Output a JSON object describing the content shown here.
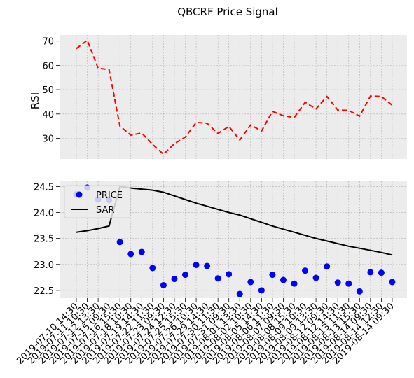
{
  "chart_data": [
    {
      "type": "line",
      "title": "QBCRF Price Signal",
      "ylabel": "RSI",
      "xlabel": "",
      "ylim": [
        21.5,
        72.5
      ],
      "yticks": [
        30,
        40,
        50,
        60,
        70
      ],
      "grid": true,
      "series": [
        {
          "values": [
            66.9,
            70.3,
            58.8,
            58.2,
            35.0,
            31.3,
            32.2,
            27.5,
            23.4,
            27.8,
            30.5,
            36.5,
            36.2,
            32.0,
            34.9,
            29.3,
            35.5,
            33.0,
            41.1,
            39.3,
            38.6,
            44.8,
            42.1,
            47.2,
            41.6,
            41.5,
            39.1,
            47.4,
            47.2,
            43.6
          ],
          "color": "#ff0000",
          "dash": "dashed"
        }
      ]
    },
    {
      "type": "scatter",
      "ylim": [
        22.35,
        24.6
      ],
      "yticks": [
        "22.5",
        "23.0",
        "23.5",
        "24.0",
        "24.5"
      ],
      "grid": true,
      "legend_position": "top-left",
      "categories": [
        "2019-07-10 14:30",
        "2019-07-11 10:30",
        "2019-07-12 13:30",
        "2019-07-15 09:30",
        "2019-07-16 15:30",
        "2019-07-18 10:30",
        "2019-07-19 14:30",
        "2019-07-22 11:30",
        "2019-07-23 09:30",
        "2019-07-24 12:30",
        "2019-07-25 15:30",
        "2019-07-26 10:30",
        "2019-07-29 14:30",
        "2019-07-30 11:30",
        "2019-07-31 09:30",
        "2019-08-01 13:30",
        "2019-08-02 10:30",
        "2019-08-05 14:30",
        "2019-08-06 11:30",
        "2019-08-07 09:30",
        "2019-08-08 15:30",
        "2019-08-09 10:30",
        "2019-08-09 13:30",
        "2019-08-12 09:30",
        "2019-08-12 14:30",
        "2019-08-13 11:30",
        "2019-08-13 15:30",
        "2019-08-14 09:30",
        "2019-08-14 12:30",
        "2019-08-14 09:30"
      ],
      "series": [
        {
          "name": "PRICE",
          "kind": "scatter",
          "color": "#0000ff",
          "values": [
            24.35,
            24.48,
            24.25,
            24.24,
            23.43,
            23.2,
            23.24,
            22.93,
            22.6,
            22.72,
            22.8,
            22.99,
            22.97,
            22.73,
            22.81,
            22.43,
            22.66,
            22.5,
            22.8,
            22.7,
            22.63,
            22.88,
            22.74,
            22.96,
            22.65,
            22.63,
            22.48,
            22.85,
            22.84,
            22.66
          ]
        },
        {
          "name": "SAR",
          "kind": "line",
          "color": "#000000",
          "values": [
            23.62,
            23.65,
            23.69,
            23.74,
            24.5,
            24.47,
            24.45,
            24.43,
            24.39,
            24.32,
            24.25,
            24.18,
            24.12,
            24.06,
            24.0,
            23.95,
            23.88,
            23.81,
            23.74,
            23.68,
            23.62,
            23.56,
            23.5,
            23.45,
            23.4,
            23.35,
            23.31,
            23.27,
            23.23,
            23.18
          ]
        }
      ]
    }
  ]
}
